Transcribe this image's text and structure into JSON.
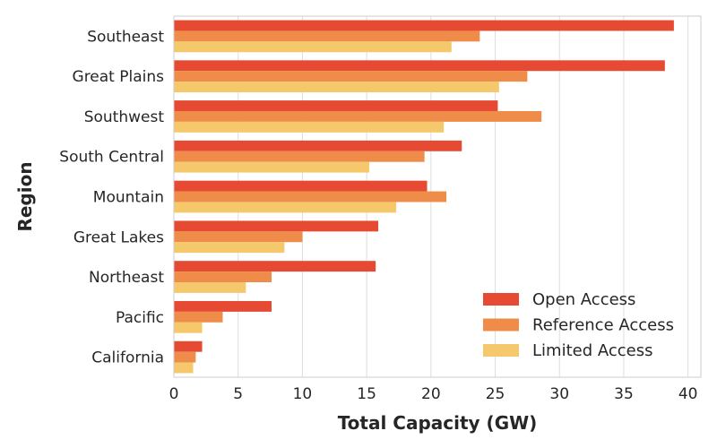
{
  "chart_data": {
    "type": "bar",
    "orientation": "horizontal",
    "xlabel": "Total Capacity (GW)",
    "ylabel": "Region",
    "categories": [
      "Southeast",
      "Great Plains",
      "Southwest",
      "South Central",
      "Mountain",
      "Great Lakes",
      "Northeast",
      "Pacific",
      "California"
    ],
    "series": [
      {
        "name": "Open Access",
        "color": "#e64a32",
        "values": [
          38.9,
          38.2,
          25.2,
          22.4,
          19.7,
          15.9,
          15.7,
          7.6,
          2.2
        ]
      },
      {
        "name": "Reference Access",
        "color": "#ef8c4a",
        "values": [
          23.8,
          27.5,
          28.6,
          19.5,
          21.2,
          10.0,
          7.6,
          3.8,
          1.7
        ]
      },
      {
        "name": "Limited Access",
        "color": "#f5c96b",
        "values": [
          21.6,
          25.3,
          21.0,
          15.2,
          17.3,
          8.6,
          5.6,
          2.2,
          1.5
        ]
      }
    ],
    "xlim": [
      0,
      41
    ],
    "xticks": [
      0,
      5,
      10,
      15,
      20,
      25,
      30,
      35,
      40
    ],
    "grid": true,
    "legend_position": "bottom-right"
  }
}
